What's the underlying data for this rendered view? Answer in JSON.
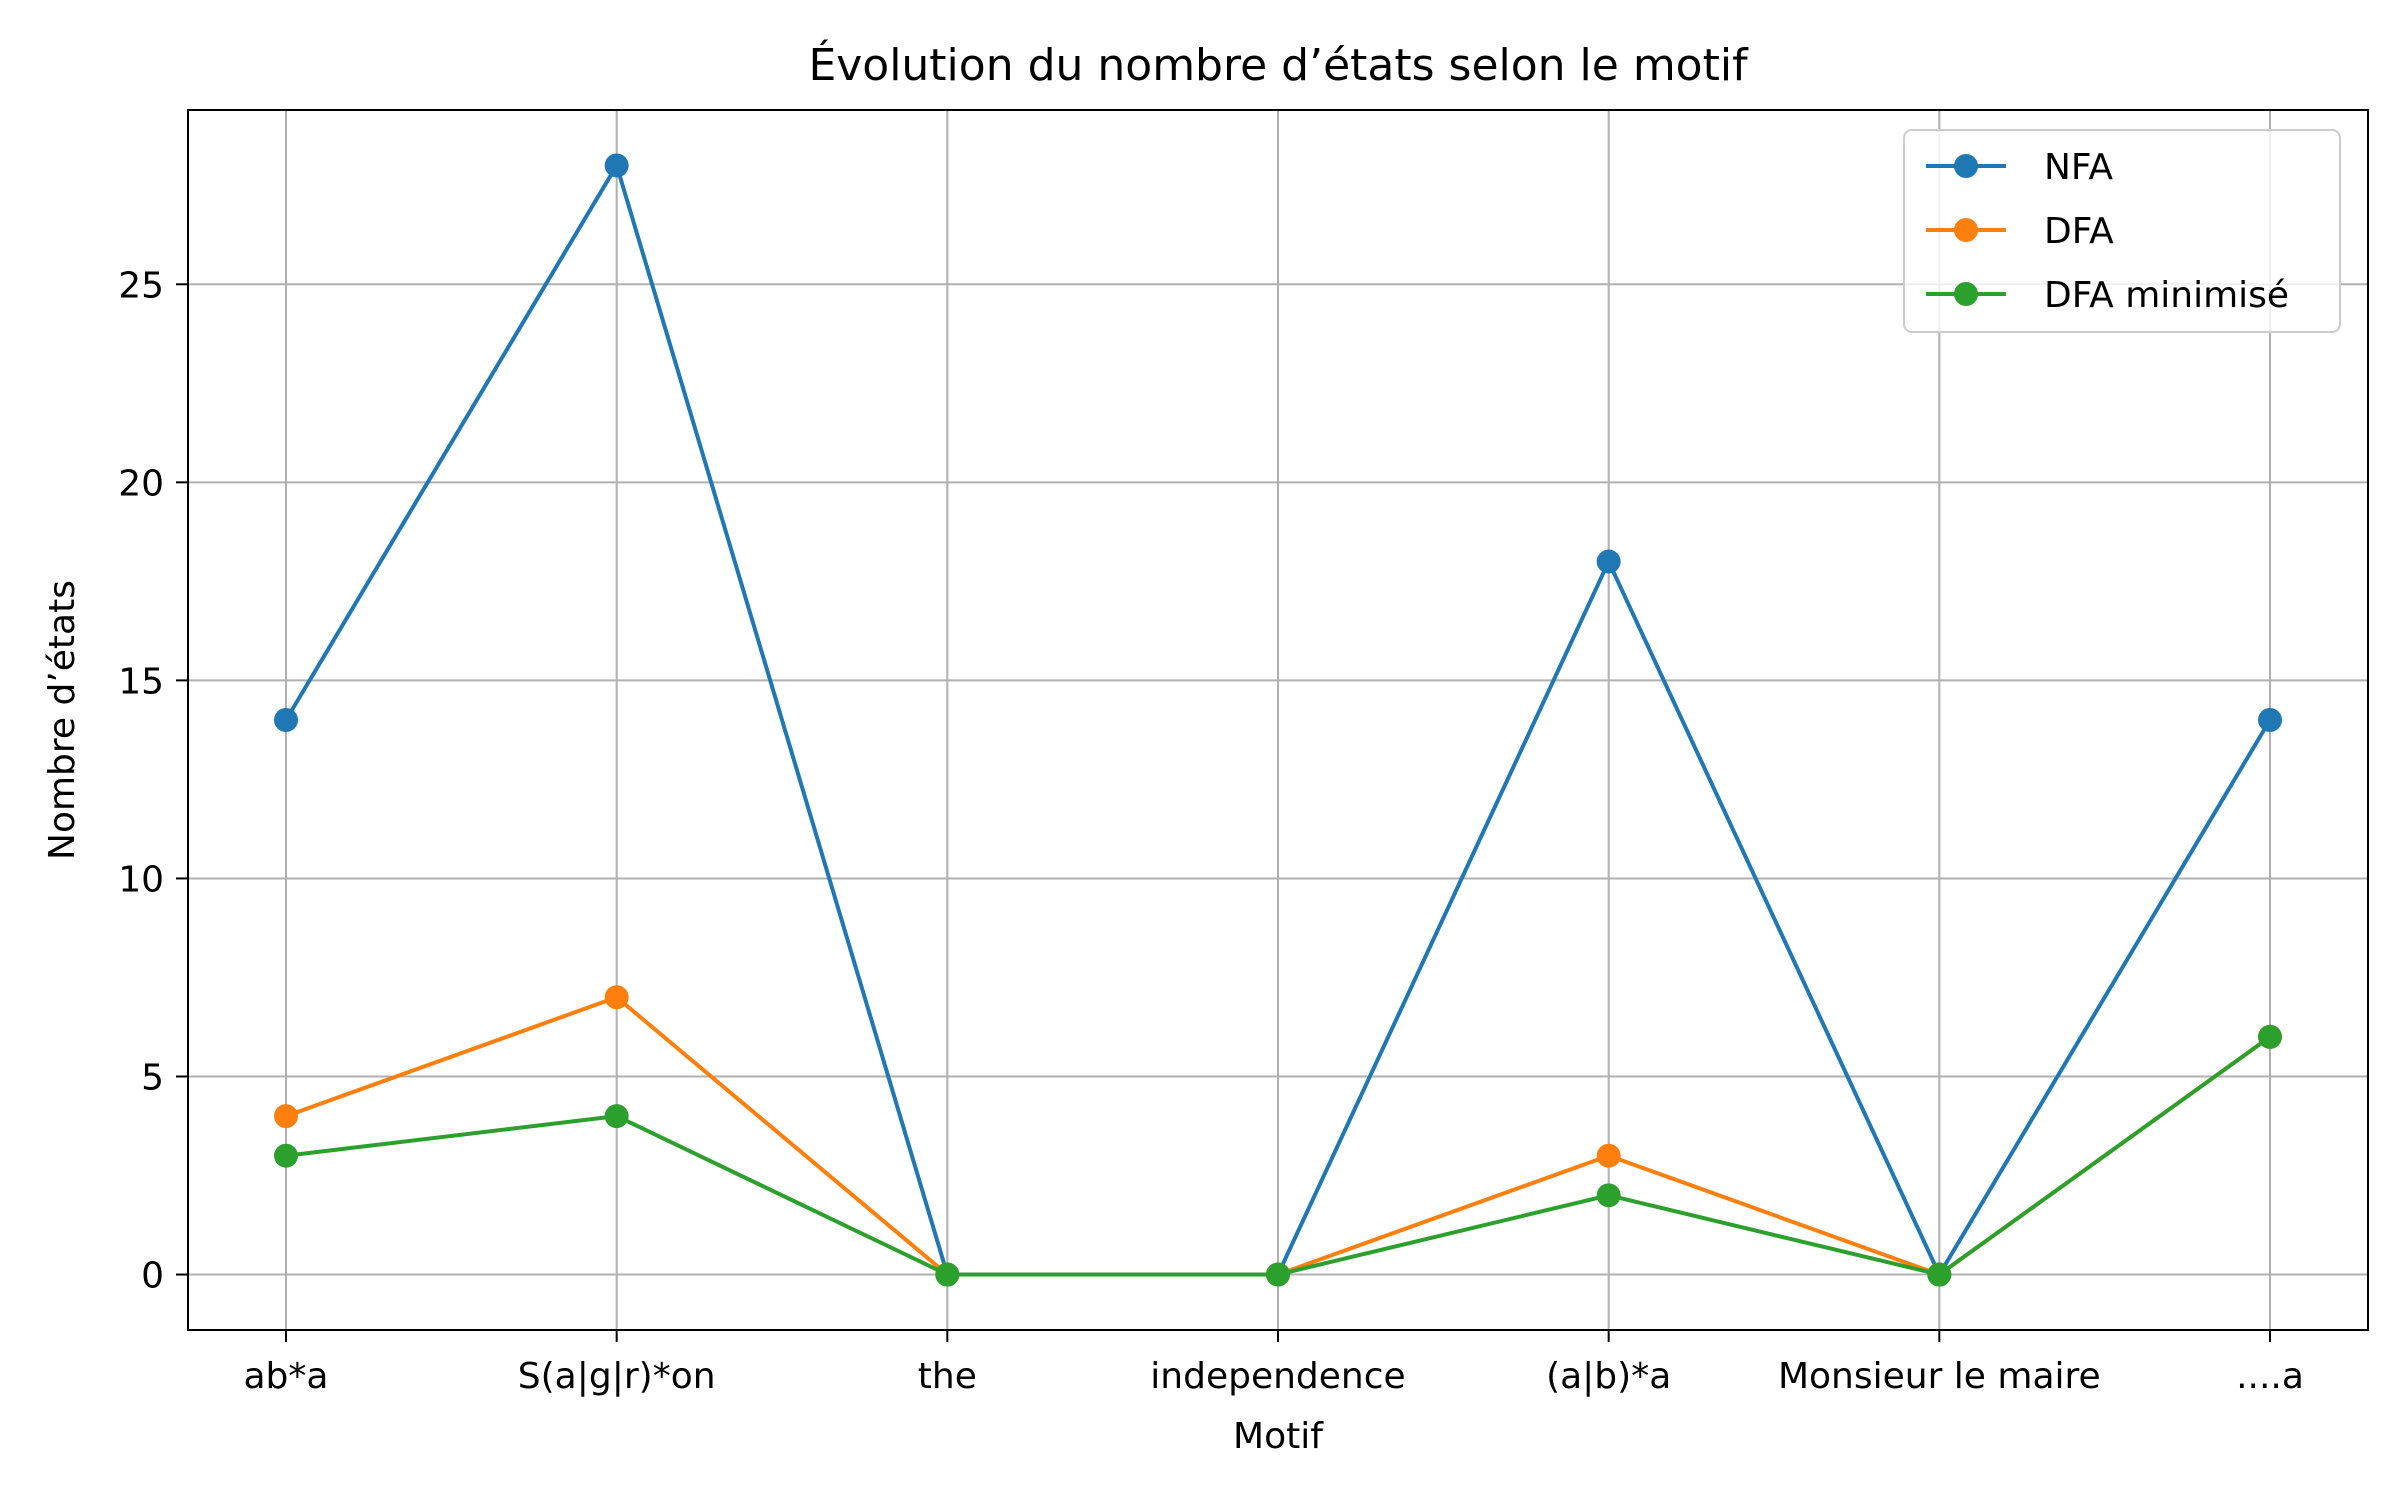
{
  "chart_data": {
    "type": "line",
    "title": "Évolution du nombre d’états selon le motif",
    "xlabel": "Motif",
    "ylabel": "Nombre d’états",
    "categories": [
      "ab*a",
      "S(a|g|r)*on",
      "the",
      "independence",
      "(a|b)*a",
      "Monsieur le maire",
      "....a"
    ],
    "series": [
      {
        "name": "NFA",
        "color": "#1f77b4",
        "values": [
          14,
          28,
          0,
          0,
          18,
          0,
          14
        ]
      },
      {
        "name": "DFA",
        "color": "#ff7f0e",
        "values": [
          4,
          7,
          0,
          0,
          3,
          0,
          6
        ]
      },
      {
        "name": "DFA minimisé",
        "color": "#2ca02c",
        "values": [
          3,
          4,
          0,
          0,
          2,
          0,
          6
        ]
      }
    ],
    "ylim": [
      -1.4,
      29.4
    ],
    "yticks": [
      0,
      5,
      10,
      15,
      20,
      25
    ],
    "grid": true,
    "legend_position": "top-right"
  }
}
